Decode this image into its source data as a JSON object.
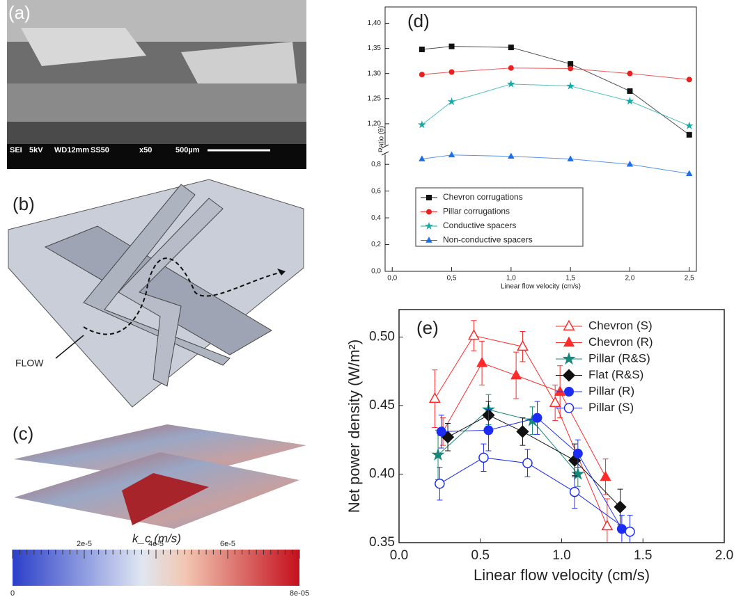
{
  "panels": {
    "a": {
      "label": "(a)",
      "info": [
        "SEI",
        "5kV",
        "WD12mm",
        "SS50",
        "x50",
        "500µm"
      ]
    },
    "b": {
      "label": "(b)",
      "flow": "FLOW"
    },
    "c": {
      "label": "(c)",
      "colorbar": {
        "title": "k_c (m/s)",
        "lim": [
          0,
          8e-05
        ],
        "ticks": [
          0,
          {
            "value": 2e-05,
            "label": "2e-5"
          },
          {
            "value": 4e-05,
            "label": "4e-5"
          },
          {
            "value": 6e-05,
            "label": "6e-5"
          },
          {
            "value": 8e-05,
            "label": "8e-05"
          }
        ]
      }
    }
  },
  "chart_data": [
    {
      "type": "line",
      "panel_label": "(d)",
      "x_label": "Linear flow velocity (cm/s)",
      "y_label": "Ratio (θ)",
      "x": [
        0.25,
        0.5,
        1.0,
        1.5,
        2.0,
        2.5
      ],
      "xlim": [
        -0.06,
        2.56
      ],
      "xticks": [
        {
          "value": 0,
          "label": "0,0"
        },
        {
          "value": 0.5,
          "label": "0,5"
        },
        {
          "value": 1,
          "label": "1,0"
        },
        {
          "value": 1.5,
          "label": "1,5"
        },
        {
          "value": 2,
          "label": "2,0"
        },
        {
          "value": 2.5,
          "label": "2,5"
        }
      ],
      "ylim": [
        0,
        1.42
      ],
      "y_break": [
        0.9,
        1.15
      ],
      "yticks": [
        {
          "value": 0,
          "label": "0,0"
        },
        {
          "value": 0.2,
          "label": "0,2"
        },
        {
          "value": 0.4,
          "label": "0,4"
        },
        {
          "value": 0.6,
          "label": "0,6"
        },
        {
          "value": 0.8,
          "label": "0,8"
        },
        {
          "value": 1.2,
          "label": "1,20"
        },
        {
          "value": 1.25,
          "label": "1,25"
        },
        {
          "value": 1.3,
          "label": "1,30"
        },
        {
          "value": 1.35,
          "label": "1,35"
        },
        {
          "value": 1.4,
          "label": "1,40"
        }
      ],
      "legend": "lower left",
      "series": [
        {
          "name": "Chevron corrugations",
          "color": "#111111",
          "marker": "square",
          "values": [
            1.348,
            1.354,
            1.352,
            1.319,
            1.265,
            1.178
          ]
        },
        {
          "name": "Pillar corrugations",
          "color": "#e8201f",
          "marker": "circle",
          "values": [
            1.298,
            1.303,
            1.311,
            1.31,
            1.3,
            1.288
          ]
        },
        {
          "name": "Conductive spacers",
          "color": "#16aaa6",
          "marker": "star",
          "values": [
            1.198,
            1.244,
            1.279,
            1.275,
            1.245,
            1.196
          ]
        },
        {
          "name": "Non-conductive spacers",
          "color": "#1f6fe8",
          "marker": "triangle",
          "values": [
            0.84,
            0.87,
            0.86,
            0.84,
            0.8,
            0.73
          ]
        }
      ]
    },
    {
      "type": "scatter",
      "panel_label": "(e)",
      "x_label": "Linear flow velocity (cm/s)",
      "y_label": "Net power density (W/m²)",
      "xlim": [
        0,
        2
      ],
      "xticks": [
        {
          "value": 0,
          "label": "0.0"
        },
        0.5,
        {
          "value": 1,
          "label": "1.0"
        },
        1.5,
        {
          "value": 2,
          "label": "2.0"
        }
      ],
      "ylim": [
        0.35,
        0.52
      ],
      "yticks": [
        {
          "value": 0.35,
          "label": "0.35"
        },
        {
          "value": 0.4,
          "label": "0.40"
        },
        {
          "value": 0.45,
          "label": "0.45"
        },
        {
          "value": 0.5,
          "label": "0.50"
        }
      ],
      "legend": "upper right",
      "series": [
        {
          "name": "Chevron (S)",
          "color": "#ff2a2a",
          "marker": "triangle",
          "filled": false,
          "x": [
            0.22,
            0.46,
            0.76,
            0.96,
            1.28
          ],
          "values": [
            0.455,
            0.501,
            0.493,
            0.452,
            0.362
          ],
          "errors": [
            0.021,
            0.011,
            0.011,
            0.013,
            0.02
          ]
        },
        {
          "name": "Chevron (R)",
          "color": "#ff2a2a",
          "marker": "triangle",
          "filled": true,
          "x": [
            0.27,
            0.51,
            0.72,
            0.99,
            1.27
          ],
          "values": [
            0.431,
            0.481,
            0.472,
            0.46,
            0.398
          ],
          "errors": [
            0.01,
            0.016,
            0.017,
            0.019,
            0.013
          ]
        },
        {
          "name": "Pillar (R&S)",
          "color": "#17887a",
          "marker": "star",
          "filled": true,
          "x": [
            0.24,
            0.55,
            0.82,
            1.1
          ],
          "values": [
            0.414,
            0.447,
            0.439,
            0.4
          ],
          "errors": [
            0.018,
            0.011,
            0.01,
            0.009
          ]
        },
        {
          "name": "Flat (R&S)",
          "color": "#111111",
          "marker": "diamond",
          "filled": true,
          "x": [
            0.3,
            0.55,
            0.76,
            1.08,
            1.36
          ],
          "values": [
            0.427,
            0.443,
            0.431,
            0.41,
            0.376
          ],
          "errors": [
            0.01,
            0.01,
            0.01,
            0.012,
            0.013
          ]
        },
        {
          "name": "Pillar (R)",
          "color": "#1d2cf5",
          "marker": "circle",
          "filled": true,
          "x": [
            0.26,
            0.55,
            0.85,
            1.1,
            1.37
          ],
          "values": [
            0.431,
            0.432,
            0.441,
            0.415,
            0.36
          ],
          "errors": [
            0.012,
            0.015,
            0.012,
            0.01,
            0.01
          ]
        },
        {
          "name": "Pillar (S)",
          "color": "#1d2cf5",
          "marker": "circle",
          "filled": false,
          "x": [
            0.25,
            0.52,
            0.79,
            1.08,
            1.42
          ],
          "values": [
            0.393,
            0.412,
            0.408,
            0.387,
            0.358
          ],
          "errors": [
            0.012,
            0.01,
            0.01,
            0.012,
            0.012
          ]
        }
      ]
    }
  ]
}
